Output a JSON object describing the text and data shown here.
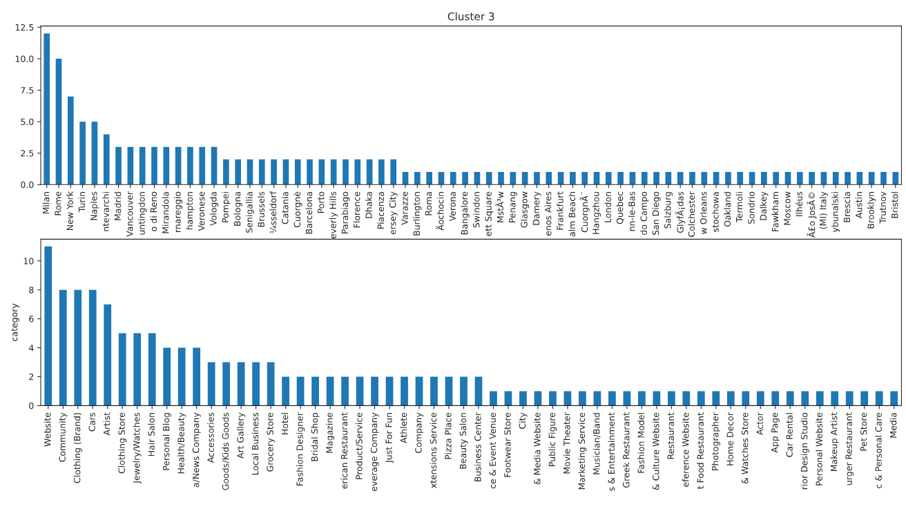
{
  "chart_data": [
    {
      "type": "bar",
      "title": "Cluster 3",
      "color": "#1f77b4",
      "ylim": [
        0,
        12.6
      ],
      "yticks": [
        {
          "value": 0,
          "label": "0.0"
        },
        {
          "value": 2.5,
          "label": "2.5"
        },
        {
          "value": 5,
          "label": "5.0"
        },
        {
          "value": 7.5,
          "label": "7.5"
        },
        {
          "value": 10,
          "label": "10.0"
        },
        {
          "value": 12.5,
          "label": "12.5"
        }
      ],
      "categories": [
        "Milan",
        "Rome",
        "New York",
        "Turin",
        "Naples",
        "ntevarchi",
        "Madrid",
        "Vancouver",
        "untingdon",
        "o di Reno",
        "Mirandola",
        "rnareggio",
        "hampton",
        "Veronese",
        "Vologda",
        "Pompei",
        "Bologna",
        "Senigallia",
        "Brussels",
        "¼sseldorf",
        "Catania",
        "Cuorgnè",
        "Barcelona",
        "Porto",
        "everly Hills",
        "Parabiago",
        "Florence",
        "Dhaka",
        "Piacenza",
        "ersey City",
        "Varazze",
        "Burlington",
        "Roma",
        "Äochocin",
        "Verona",
        "Bangalore",
        "Swindon",
        "ett Square",
        "MstÃ³w",
        "Penang",
        "Glasgow",
        "Damery",
        "enos Aires",
        "Frankfurt",
        "alm Beach",
        "CuorgnÃ¨",
        "Hangzhou",
        "London",
        "Quebec",
        "nn-le-Bas",
        "do Campo",
        "San Diego",
        "Salzburg",
        "GlyfÃ¡das",
        "Colchester",
        "w Orleans",
        "stochowa",
        "Oakland",
        "Termoli",
        "Sondrio",
        "Dalkey",
        "Fawkham",
        "Moscow",
        "Ilhéus",
        "Ã£o JosÃ©",
        "(MI) Italy",
        "ybunalski",
        "Brescia",
        "Austin",
        "Brooklyn",
        "Trutnov",
        "Bristol"
      ],
      "values": [
        12,
        10,
        7,
        5,
        5,
        4,
        3,
        3,
        3,
        3,
        3,
        3,
        3,
        3,
        3,
        2,
        2,
        2,
        2,
        2,
        2,
        2,
        2,
        2,
        2,
        2,
        2,
        2,
        2,
        2,
        1,
        1,
        1,
        1,
        1,
        1,
        1,
        1,
        1,
        1,
        1,
        1,
        1,
        1,
        1,
        1,
        1,
        1,
        1,
        1,
        1,
        1,
        1,
        1,
        1,
        1,
        1,
        1,
        1,
        1,
        1,
        1,
        1,
        1,
        1,
        1,
        1,
        1,
        1,
        1,
        1,
        1
      ]
    },
    {
      "type": "bar",
      "ylabel": "category",
      "color": "#1f77b4",
      "ylim": [
        0,
        11.5
      ],
      "yticks": [
        0,
        2,
        4,
        6,
        8,
        10
      ],
      "categories": [
        "Website",
        "Community",
        "Clothing (Brand)",
        "Cars",
        "Artist",
        "Clothing Store",
        "Jewelry/Watches",
        "Hair Salon",
        "Personal Blog",
        "Health/Beauty",
        "a/News Company",
        "Accessories",
        "Goods/Kids Goods",
        "Art Gallery",
        "Local Business",
        "Grocery Store",
        "Hotel",
        "Fashion Designer",
        "Bridal Shop",
        "Magazine",
        "erican Restaurant",
        "Product/Service",
        "everage Company",
        "Just For Fun",
        "Athlete",
        "Company",
        "xtensions Service",
        "Pizza Place",
        "Beauty Salon",
        "Business Center",
        "ce & Event Venue",
        "Footwear Store",
        "City",
        "& Media Website",
        "Public Figure",
        "Movie Theater",
        "Marketing Service",
        "Musician/Band",
        "s & Entertainment",
        "Greek Restaurant",
        "Fashion Model",
        "& Culture Website",
        "Restaurant",
        "eference Website",
        "t Food Restaurant",
        "Photographer",
        "Home Decor",
        "& Watches Store",
        "Actor",
        "App Page",
        "Car Rental",
        "rior Design Studio",
        "Personal Website",
        "Makeup Artist",
        "urger Restaurant",
        "Pet Store",
        "c & Personal Care",
        "Media"
      ],
      "values": [
        11,
        8,
        8,
        8,
        7,
        5,
        5,
        5,
        4,
        4,
        4,
        3,
        3,
        3,
        3,
        3,
        2,
        2,
        2,
        2,
        2,
        2,
        2,
        2,
        2,
        2,
        2,
        2,
        2,
        2,
        1,
        1,
        1,
        1,
        1,
        1,
        1,
        1,
        1,
        1,
        1,
        1,
        1,
        1,
        1,
        1,
        1,
        1,
        1,
        1,
        1,
        1,
        1,
        1,
        1,
        1,
        1,
        1
      ]
    }
  ]
}
